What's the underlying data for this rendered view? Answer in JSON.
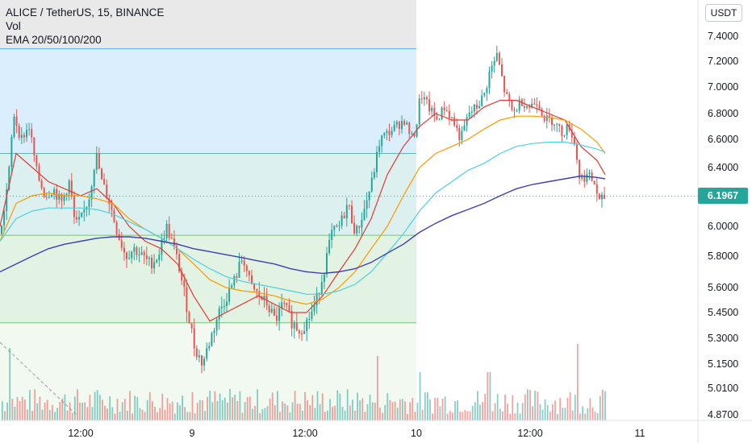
{
  "legend": {
    "symbol": "ALICE / TetherUS, 15, BINANCE",
    "volume": "Vol",
    "indicator": "EMA 20/50/100/200"
  },
  "currency": "USDT",
  "last_price": "6.1967",
  "colors": {
    "up": "#26a69a",
    "down": "#ef5350",
    "ema20": "#e53935",
    "ema50": "#ff9800",
    "ema100": "#4dd0e1",
    "ema200": "#3f3fb5",
    "zone_blue": "#2196f3",
    "zone_teal": "#26a69a",
    "zone_green": "#4caf50"
  },
  "chart_data": {
    "type": "line",
    "x_ticks": [
      "12:00",
      "9",
      "12:00",
      "10",
      "12:00",
      "11"
    ],
    "y_ticks": [
      "7.4000",
      "7.2000",
      "7.0000",
      "6.8000",
      "6.6000",
      "6.4000",
      "6.2000",
      "6.0000",
      "5.8000",
      "5.6000",
      "5.4500",
      "5.3000",
      "5.1500",
      "5.0100",
      "4.8700"
    ],
    "ylim": [
      4.85,
      7.5
    ],
    "zones": [
      {
        "name": "blue-zone",
        "from": 6.5,
        "to": 7.3
      },
      {
        "name": "teal-zone",
        "from": 5.94,
        "to": 6.5
      },
      {
        "name": "green-zone",
        "from": 5.39,
        "to": 5.94
      }
    ],
    "price_points": [
      [
        0,
        5.95
      ],
      [
        10,
        6.35
      ],
      [
        16,
        6.8
      ],
      [
        25,
        6.6
      ],
      [
        35,
        6.7
      ],
      [
        45,
        6.35
      ],
      [
        55,
        6.2
      ],
      [
        65,
        6.25
      ],
      [
        75,
        6.15
      ],
      [
        85,
        6.3
      ],
      [
        92,
        6.0
      ],
      [
        100,
        6.05
      ],
      [
        110,
        6.2
      ],
      [
        118,
        6.5
      ],
      [
        125,
        6.3
      ],
      [
        135,
        6.15
      ],
      [
        145,
        5.95
      ],
      [
        155,
        5.8
      ],
      [
        165,
        5.85
      ],
      [
        175,
        5.8
      ],
      [
        185,
        5.75
      ],
      [
        195,
        5.8
      ],
      [
        205,
        6.0
      ],
      [
        212,
        5.9
      ],
      [
        220,
        5.75
      ],
      [
        230,
        5.5
      ],
      [
        240,
        5.25
      ],
      [
        250,
        5.15
      ],
      [
        260,
        5.3
      ],
      [
        270,
        5.45
      ],
      [
        280,
        5.55
      ],
      [
        290,
        5.65
      ],
      [
        300,
        5.8
      ],
      [
        310,
        5.6
      ],
      [
        320,
        5.55
      ],
      [
        330,
        5.5
      ],
      [
        340,
        5.4
      ],
      [
        350,
        5.5
      ],
      [
        360,
        5.4
      ],
      [
        370,
        5.35
      ],
      [
        380,
        5.4
      ],
      [
        390,
        5.5
      ],
      [
        400,
        5.7
      ],
      [
        410,
        5.95
      ],
      [
        420,
        6.0
      ],
      [
        430,
        6.15
      ],
      [
        440,
        5.95
      ],
      [
        450,
        6.1
      ],
      [
        460,
        6.3
      ],
      [
        470,
        6.6
      ],
      [
        480,
        6.65
      ],
      [
        490,
        6.7
      ],
      [
        500,
        6.75
      ],
      [
        510,
        6.6
      ],
      [
        515,
        6.7
      ],
      [
        520,
        6.95
      ],
      [
        530,
        6.85
      ],
      [
        540,
        6.75
      ],
      [
        550,
        6.85
      ],
      [
        560,
        6.75
      ],
      [
        570,
        6.6
      ],
      [
        580,
        6.8
      ],
      [
        590,
        6.85
      ],
      [
        600,
        6.95
      ],
      [
        605,
        7.1
      ],
      [
        615,
        7.25
      ],
      [
        625,
        6.95
      ],
      [
        635,
        6.8
      ],
      [
        645,
        6.9
      ],
      [
        655,
        6.85
      ],
      [
        665,
        6.9
      ],
      [
        675,
        6.75
      ],
      [
        685,
        6.75
      ],
      [
        695,
        6.65
      ],
      [
        705,
        6.7
      ],
      [
        712,
        6.55
      ],
      [
        718,
        6.3
      ],
      [
        725,
        6.35
      ],
      [
        735,
        6.3
      ],
      [
        742,
        6.15
      ],
      [
        750,
        6.2
      ]
    ],
    "ema_lines": [
      {
        "name": "EMA 20",
        "values": [
          [
            0,
            6.0
          ],
          [
            20,
            6.5
          ],
          [
            40,
            6.4
          ],
          [
            60,
            6.3
          ],
          [
            80,
            6.25
          ],
          [
            100,
            6.2
          ],
          [
            120,
            6.25
          ],
          [
            140,
            6.15
          ],
          [
            160,
            6.0
          ],
          [
            180,
            5.9
          ],
          [
            200,
            5.85
          ],
          [
            220,
            5.75
          ],
          [
            240,
            5.55
          ],
          [
            260,
            5.4
          ],
          [
            280,
            5.45
          ],
          [
            300,
            5.5
          ],
          [
            320,
            5.55
          ],
          [
            340,
            5.5
          ],
          [
            360,
            5.45
          ],
          [
            380,
            5.45
          ],
          [
            400,
            5.55
          ],
          [
            420,
            5.7
          ],
          [
            440,
            5.85
          ],
          [
            460,
            6.05
          ],
          [
            480,
            6.35
          ],
          [
            500,
            6.55
          ],
          [
            520,
            6.7
          ],
          [
            540,
            6.8
          ],
          [
            560,
            6.75
          ],
          [
            580,
            6.75
          ],
          [
            600,
            6.85
          ],
          [
            620,
            6.9
          ],
          [
            640,
            6.9
          ],
          [
            660,
            6.85
          ],
          [
            680,
            6.8
          ],
          [
            700,
            6.75
          ],
          [
            720,
            6.55
          ],
          [
            740,
            6.45
          ],
          [
            750,
            6.35
          ]
        ]
      },
      {
        "name": "EMA 50",
        "values": [
          [
            0,
            5.9
          ],
          [
            20,
            6.15
          ],
          [
            40,
            6.2
          ],
          [
            60,
            6.22
          ],
          [
            80,
            6.2
          ],
          [
            100,
            6.2
          ],
          [
            120,
            6.18
          ],
          [
            140,
            6.15
          ],
          [
            160,
            6.05
          ],
          [
            180,
            5.98
          ],
          [
            200,
            5.92
          ],
          [
            220,
            5.85
          ],
          [
            240,
            5.75
          ],
          [
            260,
            5.65
          ],
          [
            280,
            5.6
          ],
          [
            300,
            5.58
          ],
          [
            320,
            5.57
          ],
          [
            340,
            5.55
          ],
          [
            360,
            5.52
          ],
          [
            380,
            5.5
          ],
          [
            400,
            5.53
          ],
          [
            420,
            5.6
          ],
          [
            440,
            5.7
          ],
          [
            460,
            5.85
          ],
          [
            480,
            6.0
          ],
          [
            500,
            6.2
          ],
          [
            520,
            6.4
          ],
          [
            540,
            6.5
          ],
          [
            560,
            6.55
          ],
          [
            580,
            6.6
          ],
          [
            600,
            6.68
          ],
          [
            620,
            6.75
          ],
          [
            640,
            6.78
          ],
          [
            660,
            6.78
          ],
          [
            680,
            6.77
          ],
          [
            700,
            6.75
          ],
          [
            720,
            6.68
          ],
          [
            740,
            6.58
          ],
          [
            750,
            6.5
          ]
        ]
      },
      {
        "name": "EMA 100",
        "values": [
          [
            0,
            5.9
          ],
          [
            20,
            6.05
          ],
          [
            40,
            6.1
          ],
          [
            60,
            6.12
          ],
          [
            80,
            6.12
          ],
          [
            100,
            6.12
          ],
          [
            120,
            6.11
          ],
          [
            140,
            6.08
          ],
          [
            160,
            6.03
          ],
          [
            180,
            5.98
          ],
          [
            200,
            5.92
          ],
          [
            220,
            5.85
          ],
          [
            240,
            5.78
          ],
          [
            260,
            5.72
          ],
          [
            280,
            5.67
          ],
          [
            300,
            5.64
          ],
          [
            320,
            5.62
          ],
          [
            340,
            5.6
          ],
          [
            360,
            5.58
          ],
          [
            380,
            5.56
          ],
          [
            400,
            5.56
          ],
          [
            420,
            5.58
          ],
          [
            440,
            5.62
          ],
          [
            460,
            5.7
          ],
          [
            480,
            5.82
          ],
          [
            500,
            5.95
          ],
          [
            520,
            6.1
          ],
          [
            540,
            6.22
          ],
          [
            560,
            6.3
          ],
          [
            580,
            6.38
          ],
          [
            600,
            6.43
          ],
          [
            620,
            6.5
          ],
          [
            640,
            6.55
          ],
          [
            660,
            6.57
          ],
          [
            680,
            6.58
          ],
          [
            700,
            6.58
          ],
          [
            720,
            6.56
          ],
          [
            740,
            6.53
          ],
          [
            750,
            6.51
          ]
        ]
      },
      {
        "name": "EMA 200",
        "values": [
          [
            0,
            5.7
          ],
          [
            20,
            5.75
          ],
          [
            40,
            5.8
          ],
          [
            60,
            5.85
          ],
          [
            80,
            5.88
          ],
          [
            100,
            5.9
          ],
          [
            120,
            5.92
          ],
          [
            140,
            5.93
          ],
          [
            160,
            5.93
          ],
          [
            180,
            5.92
          ],
          [
            200,
            5.9
          ],
          [
            220,
            5.88
          ],
          [
            240,
            5.85
          ],
          [
            260,
            5.83
          ],
          [
            280,
            5.81
          ],
          [
            300,
            5.79
          ],
          [
            320,
            5.77
          ],
          [
            340,
            5.75
          ],
          [
            360,
            5.72
          ],
          [
            380,
            5.7
          ],
          [
            400,
            5.69
          ],
          [
            420,
            5.7
          ],
          [
            440,
            5.72
          ],
          [
            460,
            5.76
          ],
          [
            480,
            5.82
          ],
          [
            500,
            5.88
          ],
          [
            520,
            5.96
          ],
          [
            540,
            6.02
          ],
          [
            560,
            6.07
          ],
          [
            580,
            6.11
          ],
          [
            600,
            6.15
          ],
          [
            620,
            6.2
          ],
          [
            640,
            6.25
          ],
          [
            660,
            6.28
          ],
          [
            680,
            6.3
          ],
          [
            700,
            6.32
          ],
          [
            720,
            6.34
          ],
          [
            740,
            6.33
          ],
          [
            750,
            6.32
          ]
        ]
      }
    ],
    "volume_spikes": [
      {
        "x": 12,
        "v": 0.9
      },
      {
        "x": 238,
        "v": 0.35
      },
      {
        "x": 468,
        "v": 0.8
      },
      {
        "x": 520,
        "v": 0.6
      },
      {
        "x": 605,
        "v": 0.6
      },
      {
        "x": 715,
        "v": 0.95
      }
    ]
  }
}
